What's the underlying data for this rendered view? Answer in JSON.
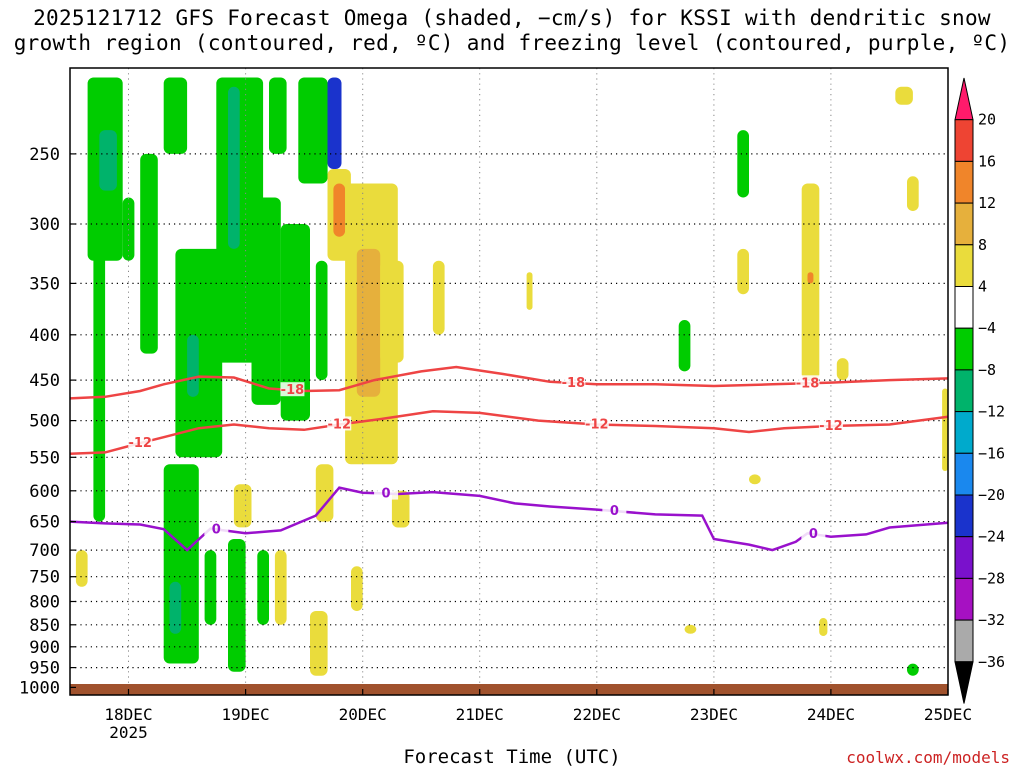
{
  "title": {
    "line1": "2025121712 GFS Forecast Omega (shaded, −cm/s) for KSSI with dendritic snow",
    "line2": "growth region (contoured, red, ºC) and freezing level (contoured, purple, ºC)"
  },
  "credit": "coolwx.com/models",
  "chart_data": {
    "type": "heatmap",
    "xlabel": "Forecast Time (UTC)",
    "ylabel": "",
    "x_ticks": [
      "18DEC",
      "19DEC",
      "20DEC",
      "21DEC",
      "22DEC",
      "23DEC",
      "24DEC",
      "25DEC"
    ],
    "x_year_label": "2025",
    "x_range_days": [
      17.5,
      25.0
    ],
    "y_ticks": [
      250,
      300,
      350,
      400,
      450,
      500,
      550,
      600,
      650,
      700,
      750,
      800,
      850,
      900,
      950,
      1000
    ],
    "y_range_hpa": [
      200,
      1020
    ],
    "y_scale": "log-pressure",
    "grid": true,
    "colorbar": {
      "labels": [
        "20",
        "16",
        "12",
        "8",
        "4",
        "−4",
        "−8",
        "−12",
        "−16",
        "−20",
        "−24",
        "−28",
        "−32",
        "−36"
      ],
      "colors": [
        "#ff1a6b",
        "#ee4433",
        "#f0852a",
        "#e6b03c",
        "#eadc3c",
        "#ffffff",
        "#00cc00",
        "#00b36b",
        "#00aacc",
        "#1a88ee",
        "#1a33cc",
        "#7a11cc",
        "#a611c2",
        "#aaaaaa",
        "#000000"
      ]
    },
    "colors": {
      "dgz_contour": "#ee4444",
      "freezing_contour": "#9911cc",
      "ground": "#a0522d"
    },
    "contour_labels": {
      "dgz_minus18": "-18",
      "dgz_minus12": "-12",
      "freezing": "0"
    },
    "dgz_minus18": [
      [
        17.5,
        472
      ],
      [
        17.8,
        470
      ],
      [
        18.1,
        463
      ],
      [
        18.3,
        455
      ],
      [
        18.6,
        446
      ],
      [
        18.9,
        447
      ],
      [
        19.2,
        460
      ],
      [
        19.5,
        463
      ],
      [
        19.8,
        462
      ],
      [
        20.1,
        450
      ],
      [
        20.5,
        440
      ],
      [
        20.8,
        435
      ],
      [
        21.2,
        443
      ],
      [
        21.6,
        452
      ],
      [
        22.0,
        455
      ],
      [
        22.5,
        455
      ],
      [
        23.0,
        457
      ],
      [
        23.5,
        455
      ],
      [
        24.0,
        453
      ],
      [
        24.5,
        450
      ],
      [
        25.0,
        448
      ]
    ],
    "dgz_minus12": [
      [
        17.5,
        545
      ],
      [
        17.8,
        543
      ],
      [
        18.1,
        530
      ],
      [
        18.3,
        522
      ],
      [
        18.6,
        510
      ],
      [
        18.9,
        505
      ],
      [
        19.2,
        510
      ],
      [
        19.5,
        512
      ],
      [
        19.8,
        505
      ],
      [
        20.2,
        497
      ],
      [
        20.6,
        488
      ],
      [
        21.0,
        490
      ],
      [
        21.5,
        500
      ],
      [
        22.0,
        505
      ],
      [
        22.5,
        507
      ],
      [
        23.0,
        510
      ],
      [
        23.3,
        515
      ],
      [
        23.6,
        510
      ],
      [
        24.0,
        507
      ],
      [
        24.5,
        505
      ],
      [
        25.0,
        495
      ]
    ],
    "freezing": [
      [
        17.5,
        650
      ],
      [
        17.8,
        653
      ],
      [
        18.1,
        655
      ],
      [
        18.3,
        663
      ],
      [
        18.5,
        700
      ],
      [
        18.7,
        662
      ],
      [
        19.0,
        670
      ],
      [
        19.3,
        665
      ],
      [
        19.6,
        640
      ],
      [
        19.8,
        595
      ],
      [
        20.0,
        603
      ],
      [
        20.3,
        605
      ],
      [
        20.6,
        602
      ],
      [
        21.0,
        608
      ],
      [
        21.3,
        620
      ],
      [
        21.6,
        625
      ],
      [
        22.0,
        630
      ],
      [
        22.5,
        638
      ],
      [
        22.9,
        640
      ],
      [
        23.0,
        680
      ],
      [
        23.3,
        690
      ],
      [
        23.5,
        700
      ],
      [
        23.7,
        685
      ],
      [
        23.8,
        670
      ],
      [
        24.0,
        676
      ],
      [
        24.3,
        672
      ],
      [
        24.5,
        660
      ],
      [
        25.0,
        652
      ]
    ],
    "omega_cells": [
      {
        "x0": 17.65,
        "x1": 17.95,
        "p0": 205,
        "p1": 330,
        "v": -6
      },
      {
        "x0": 17.75,
        "x1": 17.9,
        "p0": 235,
        "p1": 275,
        "v": -12
      },
      {
        "x0": 17.7,
        "x1": 17.8,
        "p0": 300,
        "p1": 650,
        "v": -6
      },
      {
        "x0": 17.95,
        "x1": 18.05,
        "p0": 280,
        "p1": 330,
        "v": -6
      },
      {
        "x0": 18.1,
        "x1": 18.25,
        "p0": 250,
        "p1": 420,
        "v": -6
      },
      {
        "x0": 18.3,
        "x1": 18.5,
        "p0": 205,
        "p1": 250,
        "v": -6
      },
      {
        "x0": 18.4,
        "x1": 18.8,
        "p0": 320,
        "p1": 550,
        "v": -6
      },
      {
        "x0": 18.5,
        "x1": 18.6,
        "p0": 400,
        "p1": 470,
        "v": -12
      },
      {
        "x0": 18.75,
        "x1": 19.15,
        "p0": 205,
        "p1": 430,
        "v": -6
      },
      {
        "x0": 18.85,
        "x1": 18.95,
        "p0": 210,
        "p1": 320,
        "v": -12
      },
      {
        "x0": 19.05,
        "x1": 19.3,
        "p0": 280,
        "p1": 480,
        "v": -6
      },
      {
        "x0": 19.2,
        "x1": 19.35,
        "p0": 205,
        "p1": 250,
        "v": -6
      },
      {
        "x0": 19.3,
        "x1": 19.55,
        "p0": 300,
        "p1": 500,
        "v": -6
      },
      {
        "x0": 19.45,
        "x1": 19.7,
        "p0": 205,
        "p1": 270,
        "v": -6
      },
      {
        "x0": 19.6,
        "x1": 19.7,
        "p0": 330,
        "p1": 450,
        "v": -6
      },
      {
        "x0": 19.7,
        "x1": 19.82,
        "p0": 205,
        "p1": 260,
        "v": -22
      },
      {
        "x0": 19.7,
        "x1": 19.9,
        "p0": 260,
        "p1": 330,
        "v": 6
      },
      {
        "x0": 19.75,
        "x1": 19.85,
        "p0": 270,
        "p1": 310,
        "v": 12
      },
      {
        "x0": 19.85,
        "x1": 20.3,
        "p0": 270,
        "p1": 560,
        "v": 6
      },
      {
        "x0": 19.95,
        "x1": 20.15,
        "p0": 320,
        "p1": 470,
        "v": 9
      },
      {
        "x0": 20.15,
        "x1": 20.35,
        "p0": 330,
        "p1": 430,
        "v": 6
      },
      {
        "x0": 18.3,
        "x1": 18.6,
        "p0": 560,
        "p1": 940,
        "v": -6
      },
      {
        "x0": 18.35,
        "x1": 18.45,
        "p0": 760,
        "p1": 870,
        "v": -12
      },
      {
        "x0": 18.65,
        "x1": 18.75,
        "p0": 700,
        "p1": 850,
        "v": -6
      },
      {
        "x0": 18.85,
        "x1": 19.0,
        "p0": 680,
        "p1": 960,
        "v": -6
      },
      {
        "x0": 19.1,
        "x1": 19.2,
        "p0": 700,
        "p1": 850,
        "v": -6
      },
      {
        "x0": 19.25,
        "x1": 19.35,
        "p0": 700,
        "p1": 850,
        "v": 6
      },
      {
        "x0": 19.6,
        "x1": 19.75,
        "p0": 560,
        "p1": 650,
        "v": 6
      },
      {
        "x0": 19.55,
        "x1": 19.7,
        "p0": 820,
        "p1": 970,
        "v": 6
      },
      {
        "x0": 19.9,
        "x1": 20.0,
        "p0": 730,
        "p1": 820,
        "v": 6
      },
      {
        "x0": 17.55,
        "x1": 17.65,
        "p0": 700,
        "p1": 770,
        "v": 6
      },
      {
        "x0": 18.9,
        "x1": 19.05,
        "p0": 590,
        "p1": 660,
        "v": 6
      },
      {
        "x0": 20.25,
        "x1": 20.4,
        "p0": 600,
        "p1": 660,
        "v": 6
      },
      {
        "x0": 20.6,
        "x1": 20.7,
        "p0": 330,
        "p1": 400,
        "v": 6
      },
      {
        "x0": 21.4,
        "x1": 21.45,
        "p0": 340,
        "p1": 375,
        "v": 6
      },
      {
        "x0": 22.7,
        "x1": 22.8,
        "p0": 385,
        "p1": 440,
        "v": -6
      },
      {
        "x0": 22.75,
        "x1": 22.85,
        "p0": 850,
        "p1": 870,
        "v": 6
      },
      {
        "x0": 23.2,
        "x1": 23.3,
        "p0": 235,
        "p1": 280,
        "v": -6
      },
      {
        "x0": 23.2,
        "x1": 23.3,
        "p0": 320,
        "p1": 360,
        "v": 6
      },
      {
        "x0": 23.3,
        "x1": 23.4,
        "p0": 575,
        "p1": 590,
        "v": 6
      },
      {
        "x0": 23.75,
        "x1": 23.9,
        "p0": 270,
        "p1": 450,
        "v": 6
      },
      {
        "x0": 23.8,
        "x1": 23.85,
        "p0": 340,
        "p1": 350,
        "v": 12
      },
      {
        "x0": 23.9,
        "x1": 23.97,
        "p0": 835,
        "p1": 875,
        "v": 6
      },
      {
        "x0": 24.05,
        "x1": 24.15,
        "p0": 425,
        "p1": 450,
        "v": 6
      },
      {
        "x0": 24.55,
        "x1": 24.7,
        "p0": 210,
        "p1": 220,
        "v": 6
      },
      {
        "x0": 24.65,
        "x1": 24.75,
        "p0": 265,
        "p1": 290,
        "v": 6
      },
      {
        "x0": 24.65,
        "x1": 24.75,
        "p0": 940,
        "p1": 970,
        "v": -6
      },
      {
        "x0": 24.95,
        "x1": 25.0,
        "p0": 460,
        "p1": 570,
        "v": 6
      }
    ]
  }
}
